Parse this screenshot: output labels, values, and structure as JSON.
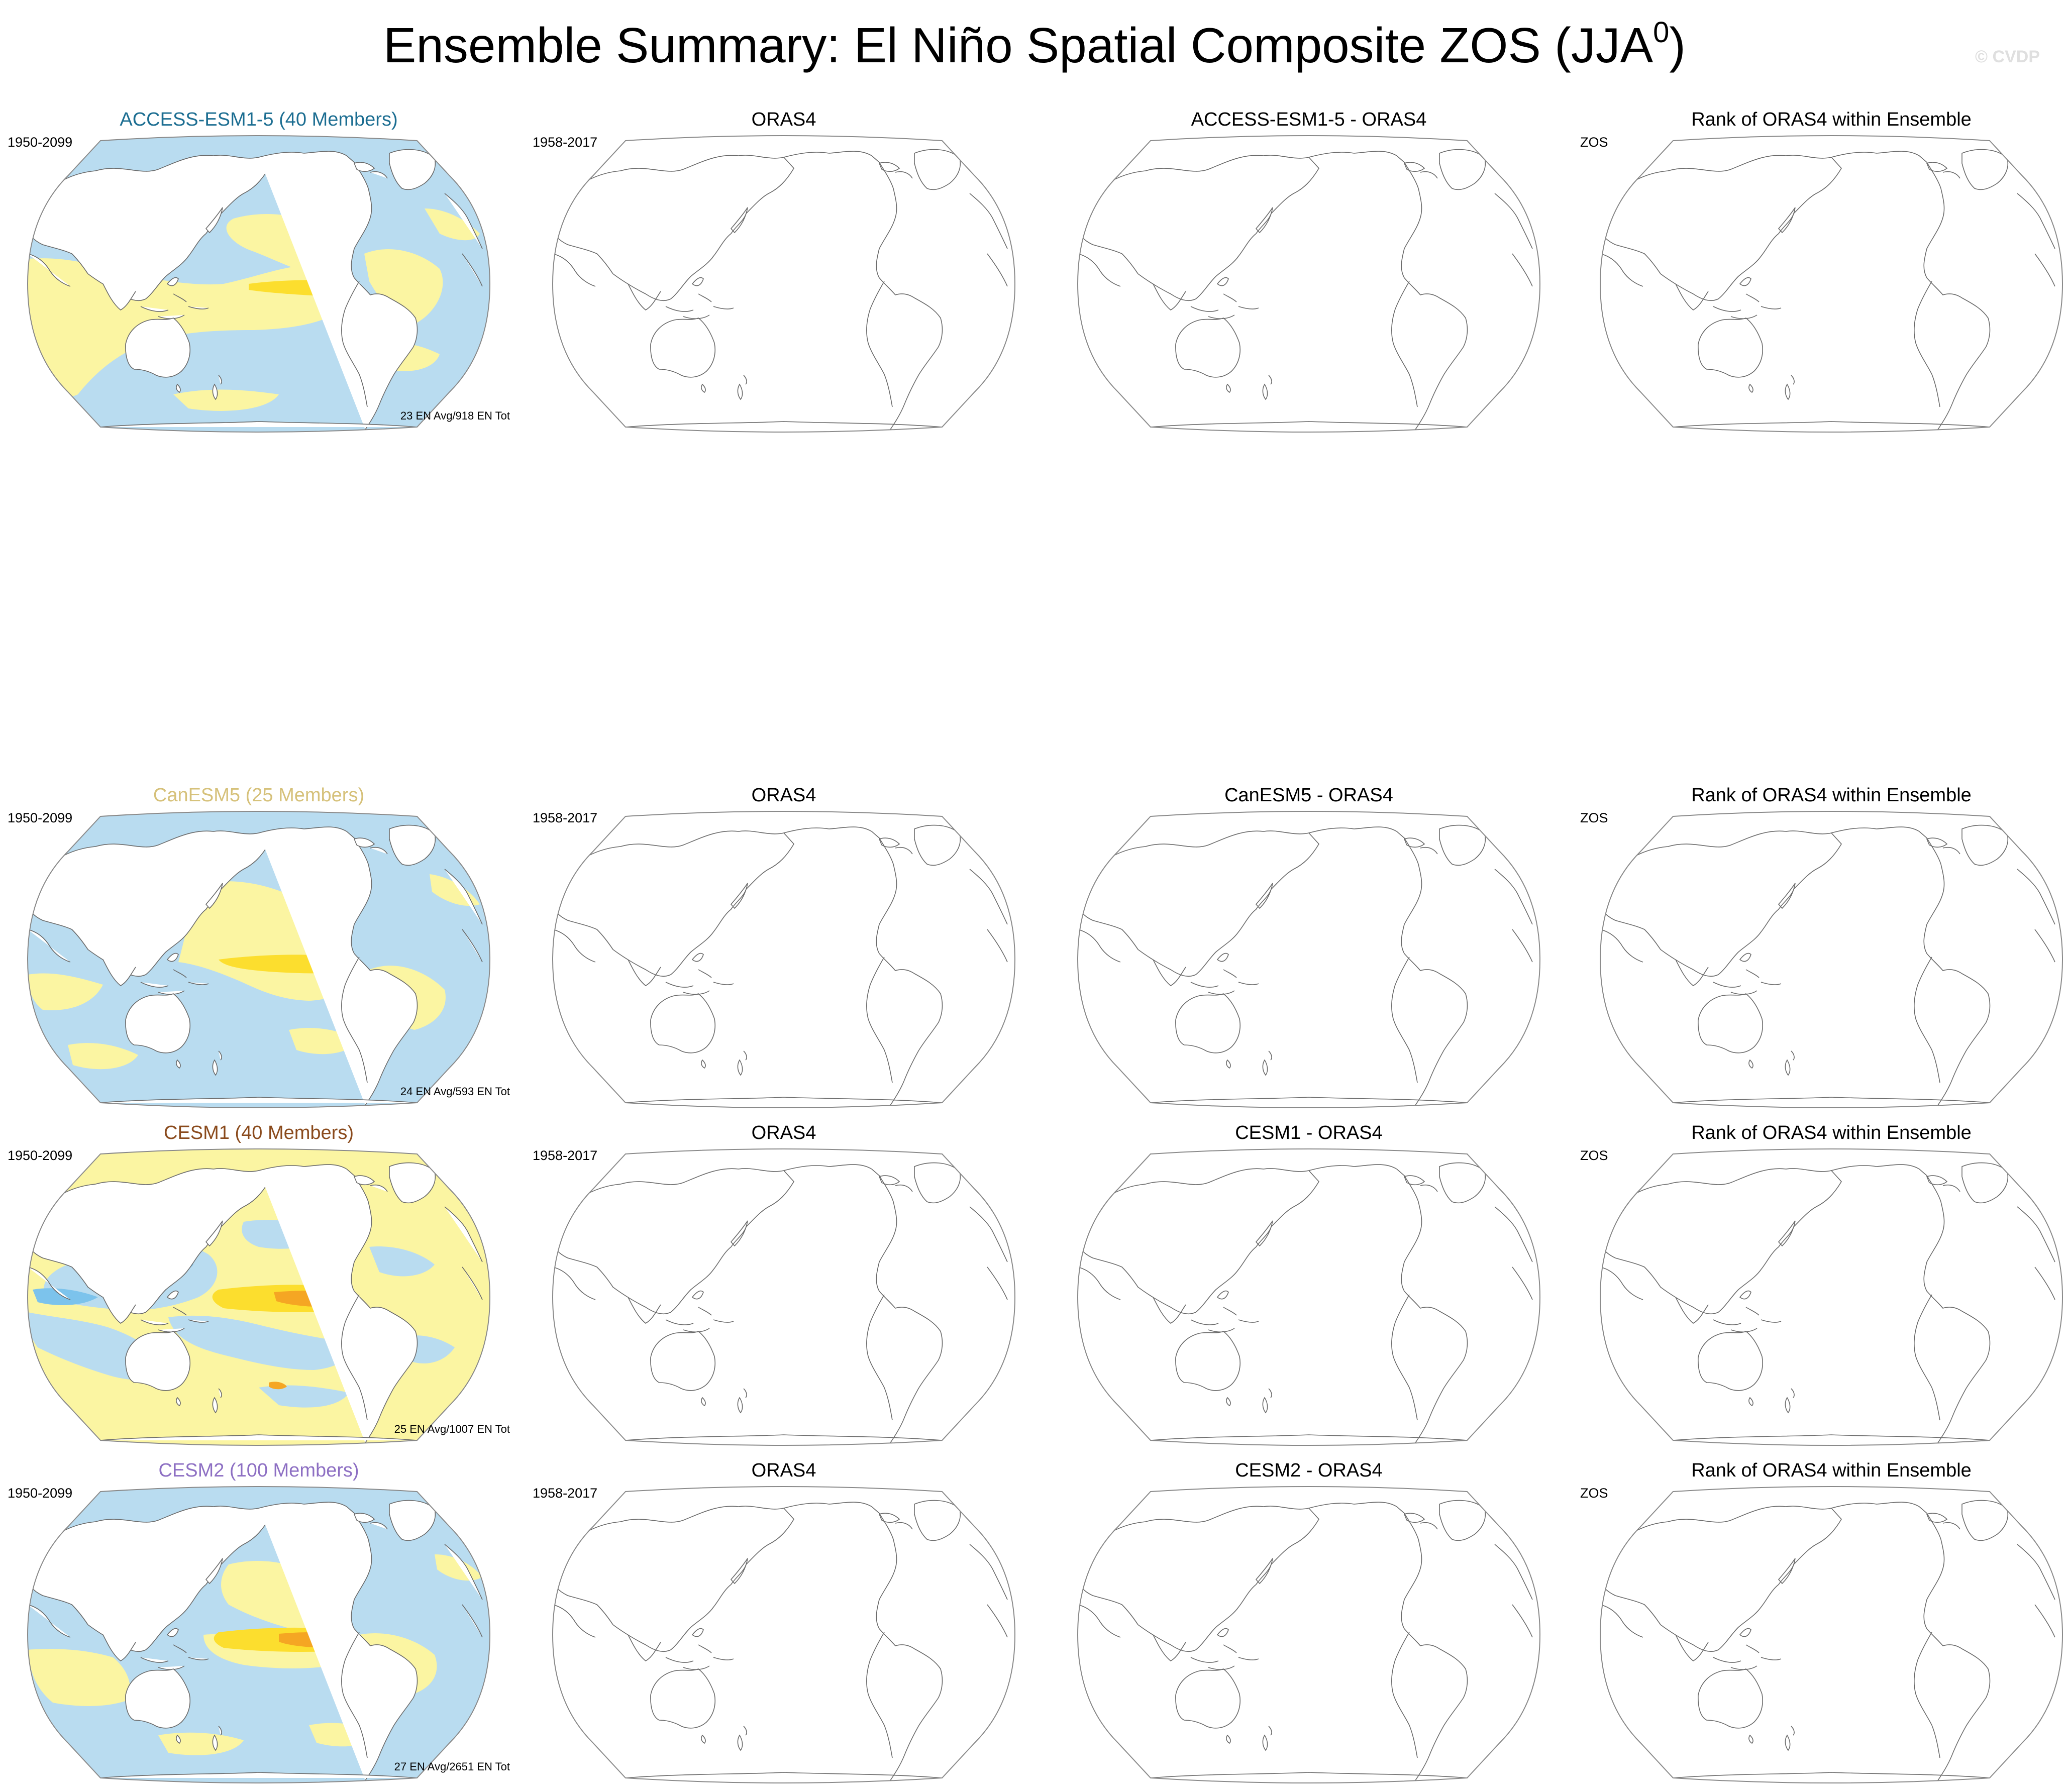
{
  "figure": {
    "title_main": "Ensemble Summary: El Niño Spatial Composite ZOS (JJA",
    "title_sup": "0",
    "title_end": ")",
    "watermark": "© CVDP"
  },
  "colors": {
    "ocean_blue": "#b9dcf0",
    "ocean_yellow": "#fbf5a2",
    "dark_yellow": "#fcde2e",
    "orange": "#f5a623",
    "deep_orange": "#ea7416",
    "mid_blue": "#7cc3ec",
    "deep_blue": "#3a9fe0",
    "coastline": "#6a6a6a"
  },
  "rows": [
    {
      "model": "ACCESS-ESM1-5 (40 Members)",
      "model_color": "#1b6d91",
      "model_period": "1950-2099",
      "model_count": "23 EN Avg/918 EN Tot",
      "pattern": "access",
      "obs_title": "ORAS4",
      "obs_period": "1958-2017",
      "diff_title": "ACCESS-ESM1-5 - ORAS4",
      "rank_title": "Rank of ORAS4 within Ensemble",
      "rank_var": "ZOS"
    },
    {
      "model": "CanESM5 (25 Members)",
      "model_color": "#d6c17a",
      "model_period": "1950-2099",
      "model_count": "24 EN Avg/593 EN Tot",
      "pattern": "canesm",
      "obs_title": "ORAS4",
      "obs_period": "1958-2017",
      "diff_title": "CanESM5 - ORAS4",
      "rank_title": "Rank of ORAS4 within Ensemble",
      "rank_var": "ZOS"
    },
    {
      "model": "CESM1 (40 Members)",
      "model_color": "#8a4a1c",
      "model_period": "1950-2099",
      "model_count": "25 EN Avg/1007 EN Tot",
      "pattern": "cesm1",
      "obs_title": "ORAS4",
      "obs_period": "1958-2017",
      "diff_title": "CESM1 - ORAS4",
      "rank_title": "Rank of ORAS4 within Ensemble",
      "rank_var": "ZOS"
    },
    {
      "model": "CESM2 (100 Members)",
      "model_color": "#8d6fc3",
      "model_period": "1950-2099",
      "model_count": "27 EN Avg/2651 EN Tot",
      "pattern": "cesm2",
      "obs_title": "ORAS4",
      "obs_period": "1958-2017",
      "diff_title": "CESM2 - ORAS4",
      "rank_title": "Rank of ORAS4 within Ensemble",
      "rank_var": "ZOS"
    }
  ]
}
